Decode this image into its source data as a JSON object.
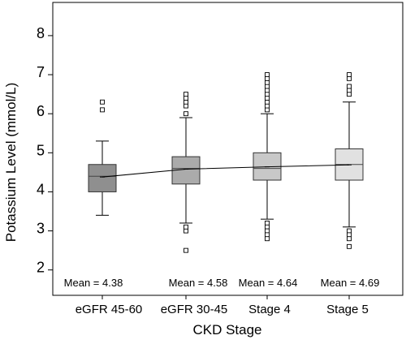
{
  "chart_data": {
    "type": "boxplot",
    "title": "",
    "xlabel": "CKD Stage",
    "ylabel": "Potassium Level (mmol/L)",
    "ylim": [
      1.35,
      8.85
    ],
    "yticks": [
      2,
      3,
      4,
      5,
      6,
      7,
      8
    ],
    "categories": [
      "eGFR 45-60",
      "eGFR 30-45",
      "Stage 4",
      "Stage 5"
    ],
    "boxes": [
      {
        "category": "eGFR 45-60",
        "whisker_low": 3.4,
        "q1": 4.0,
        "median": 4.4,
        "q3": 4.7,
        "whisker_high": 5.3,
        "mean": 4.38,
        "box_color": "#8f8f8f",
        "outliers": [
          6.1,
          6.3
        ]
      },
      {
        "category": "eGFR 30-45",
        "whisker_low": 3.2,
        "q1": 4.2,
        "median": 4.6,
        "q3": 4.9,
        "whisker_high": 5.9,
        "mean": 4.58,
        "box_color": "#ababab",
        "outliers": [
          6.0,
          6.2,
          6.3,
          6.4,
          6.5,
          3.0,
          3.1,
          2.5
        ]
      },
      {
        "category": "Stage 4",
        "whisker_low": 3.3,
        "q1": 4.3,
        "median": 4.6,
        "q3": 5.0,
        "whisker_high": 6.0,
        "mean": 4.64,
        "box_color": "#c8c8c8",
        "outliers": [
          6.1,
          6.2,
          6.3,
          6.4,
          6.5,
          6.6,
          6.7,
          6.8,
          6.9,
          7.0,
          3.2,
          3.1,
          3.0,
          2.9,
          2.8
        ]
      },
      {
        "category": "Stage 5",
        "whisker_low": 3.1,
        "q1": 4.3,
        "median": 4.7,
        "q3": 5.1,
        "whisker_high": 6.3,
        "mean": 4.69,
        "box_color": "#e1e1e1",
        "outliers": [
          6.5,
          6.6,
          6.7,
          6.9,
          7.0,
          3.0,
          2.9,
          2.8,
          2.6
        ]
      }
    ],
    "mean_labels": [
      "Mean = 4.38",
      "Mean = 4.58",
      "Mean = 4.64",
      "Mean = 4.69"
    ],
    "mean_line": true,
    "grid": false,
    "legend": "none"
  }
}
